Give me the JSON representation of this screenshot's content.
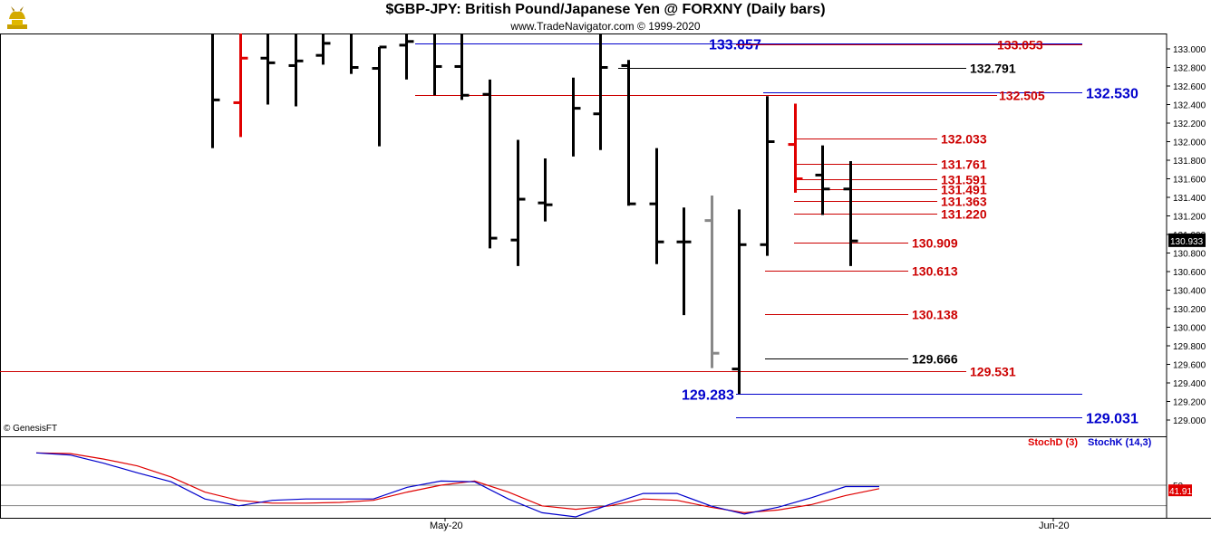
{
  "header": {
    "title": "$GBP-JPY:  British Pound/Japanese Yen @ FORXNY  (Daily bars)",
    "subtitle": "www.TradeNavigator.com © 1999-2020",
    "copyright": "© GenesisFT",
    "logo_icon": "bull-trophy-icon"
  },
  "chart_data": [
    {
      "type": "ohlc",
      "ylim": [
        128.9,
        133.2
      ],
      "grid": false,
      "yticks": [
        "133.000",
        "132.800",
        "132.600",
        "132.400",
        "132.200",
        "132.000",
        "131.800",
        "131.600",
        "131.400",
        "131.200",
        "131.000",
        "130.800",
        "130.600",
        "130.400",
        "130.200",
        "130.000",
        "129.800",
        "129.600",
        "129.400",
        "129.200",
        "129.000"
      ],
      "last_price": "130.933",
      "colors": {
        "up": "#000000",
        "down_red": "#e00000",
        "gray": "#888888",
        "blue": "#0000cc",
        "line_red": "#cc0000"
      },
      "bars": [
        {
          "o": null,
          "h": 133.25,
          "l": 131.93,
          "c": 132.45,
          "color": "black"
        },
        {
          "o": 132.42,
          "h": 133.25,
          "l": 132.05,
          "c": 132.9,
          "color": "red"
        },
        {
          "o": 132.9,
          "h": 133.25,
          "l": 132.4,
          "c": 132.85,
          "color": "black"
        },
        {
          "o": 132.82,
          "h": 133.25,
          "l": 132.38,
          "c": 132.87,
          "color": "black"
        },
        {
          "o": 132.93,
          "h": 133.25,
          "l": 132.83,
          "c": 133.06,
          "color": "black"
        },
        {
          "o": null,
          "h": 133.25,
          "l": 132.73,
          "c": 132.8,
          "color": "black"
        },
        {
          "o": 132.79,
          "h": 133.02,
          "l": 131.95,
          "c": 133.02,
          "color": "black"
        },
        {
          "o": 133.04,
          "h": 133.25,
          "l": 132.67,
          "c": 133.08,
          "color": "black"
        },
        {
          "o": null,
          "h": 133.25,
          "l": 132.5,
          "c": 132.81,
          "color": "black"
        },
        {
          "o": 132.81,
          "h": 133.25,
          "l": 132.45,
          "c": 132.5,
          "color": "black"
        },
        {
          "o": 132.51,
          "h": 132.67,
          "l": 130.85,
          "c": 130.96,
          "color": "black"
        },
        {
          "o": 130.94,
          "h": 132.02,
          "l": 130.66,
          "c": 131.38,
          "color": "black"
        },
        {
          "o": 131.34,
          "h": 131.82,
          "l": 131.14,
          "c": 131.32,
          "color": "black"
        },
        {
          "o": null,
          "h": 132.69,
          "l": 131.84,
          "c": 132.36,
          "color": "black"
        },
        {
          "o": 132.3,
          "h": 133.25,
          "l": 131.91,
          "c": 132.8,
          "color": "black"
        },
        {
          "o": 132.82,
          "h": 132.88,
          "l": 131.31,
          "c": 131.33,
          "color": "black"
        },
        {
          "o": 131.33,
          "h": 131.93,
          "l": 130.68,
          "c": 130.92,
          "color": "black"
        },
        {
          "o": 130.92,
          "h": 131.29,
          "l": 130.13,
          "c": 130.92,
          "color": "black"
        },
        {
          "o": 131.15,
          "h": 131.42,
          "l": 129.56,
          "c": 129.72,
          "color": "gray"
        },
        {
          "o": 129.55,
          "h": 131.27,
          "l": 129.28,
          "c": 130.89,
          "color": "black"
        },
        {
          "o": 130.89,
          "h": 132.49,
          "l": 130.77,
          "c": 132.0,
          "color": "black"
        },
        {
          "o": 131.97,
          "h": 132.41,
          "l": 131.45,
          "c": 131.6,
          "color": "red"
        },
        {
          "o": 131.64,
          "h": 131.96,
          "l": 131.21,
          "c": 131.49,
          "color": "black"
        },
        {
          "o": 131.49,
          "h": 131.79,
          "l": 130.66,
          "c": 130.93,
          "color": "black"
        }
      ],
      "levels": [
        {
          "value": 133.057,
          "label": "133.057",
          "color": "blue",
          "label_side": "left"
        },
        {
          "value": 133.053,
          "label": "133.053",
          "color": "red",
          "label_side": "right"
        },
        {
          "value": 132.791,
          "label": "132.791",
          "color": "black",
          "label_side": "right"
        },
        {
          "value": 132.53,
          "label": "132.530",
          "color": "blue",
          "label_side": "right"
        },
        {
          "value": 132.505,
          "label": "132.505",
          "color": "red",
          "label_side": "right"
        },
        {
          "value": 132.033,
          "label": "132.033",
          "color": "red",
          "label_side": "right"
        },
        {
          "value": 131.761,
          "label": "131.761",
          "color": "red",
          "label_side": "right"
        },
        {
          "value": 131.591,
          "label": "131.591",
          "color": "red",
          "label_side": "right"
        },
        {
          "value": 131.491,
          "label": "131.491",
          "color": "red",
          "label_side": "right"
        },
        {
          "value": 131.363,
          "label": "131.363",
          "color": "red",
          "label_side": "right"
        },
        {
          "value": 131.22,
          "label": "131.220",
          "color": "red",
          "label_side": "right"
        },
        {
          "value": 130.909,
          "label": "130.909",
          "color": "red",
          "label_side": "right"
        },
        {
          "value": 130.613,
          "label": "130.613",
          "color": "red",
          "label_side": "right"
        },
        {
          "value": 130.138,
          "label": "130.138",
          "color": "red",
          "label_side": "right"
        },
        {
          "value": 129.666,
          "label": "129.666",
          "color": "black",
          "label_side": "right"
        },
        {
          "value": 129.531,
          "label": "129.531",
          "color": "red",
          "label_side": "right"
        },
        {
          "value": 129.283,
          "label": "129.283",
          "color": "blue",
          "label_side": "left"
        },
        {
          "value": 129.031,
          "label": "129.031",
          "color": "blue",
          "label_side": "right"
        }
      ]
    },
    {
      "type": "line",
      "ylim": [
        0,
        100
      ],
      "yticks": [
        "50"
      ],
      "last_value": "41.91",
      "series": [
        {
          "name": "StochD (3)",
          "color": "#e00000",
          "values": [
            97,
            96,
            88,
            78,
            62,
            40,
            28,
            24,
            24,
            25,
            28,
            40,
            50,
            56,
            40,
            20,
            15,
            20,
            30,
            28,
            18,
            10,
            14,
            22,
            35,
            45
          ]
        },
        {
          "name": "StochK (14,3)",
          "color": "#0000cc",
          "values": [
            97,
            94,
            82,
            68,
            55,
            30,
            20,
            28,
            30,
            30,
            30,
            47,
            56,
            55,
            30,
            10,
            4,
            22,
            38,
            38,
            20,
            8,
            18,
            32,
            48,
            48
          ]
        }
      ]
    }
  ],
  "xaxis": {
    "labels": [
      "May-20",
      "Jun-20"
    ]
  }
}
